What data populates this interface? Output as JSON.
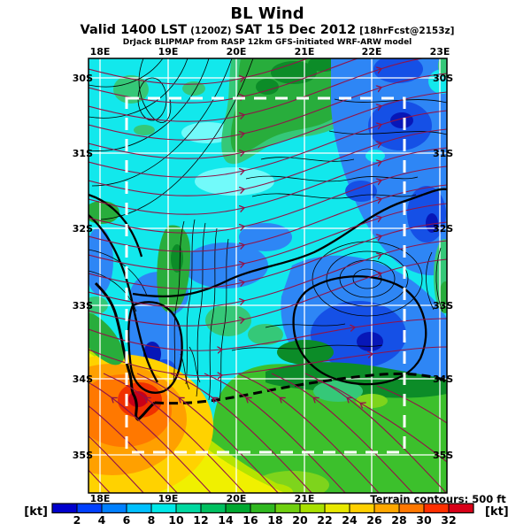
{
  "header": {
    "title": "BL Wind",
    "valid_line": {
      "prefix": "Valid 1400 LST",
      "init_time": "(1200Z)",
      "date": "SAT 15 Dec 2012",
      "fcst_tag": "[18hrFcst@2153z]"
    },
    "attribution": "DrJack BLIPMAP from RASP 12km GFS-initiated WRF-ARW model"
  },
  "map": {
    "top_lon_labels": [
      "18E",
      "19E",
      "20E",
      "21E",
      "22E",
      "23E"
    ],
    "bottom_lon_labels": [
      "18E",
      "19E",
      "20E",
      "21E"
    ],
    "left_lat_labels": [
      "30S",
      "31S",
      "32S",
      "33S",
      "34S",
      "35S"
    ],
    "right_lat_labels": [
      "30S",
      "31S",
      "32S",
      "33S",
      "34S",
      "35S"
    ],
    "terrain_note": "Terrain contours: 500 ft"
  },
  "legend": {
    "unit_left": "[kt]",
    "unit_right": "[kt]",
    "tick_labels": [
      "2",
      "4",
      "6",
      "8",
      "10",
      "12",
      "14",
      "16",
      "18",
      "20",
      "22",
      "24",
      "26",
      "28",
      "30",
      "32"
    ],
    "colors": [
      "#0000CD",
      "#0040FF",
      "#0080FF",
      "#00C0FF",
      "#00E8E8",
      "#00D8A0",
      "#00C060",
      "#00A830",
      "#30B820",
      "#70D010",
      "#A8E000",
      "#E8E800",
      "#FFD000",
      "#FFA800",
      "#FF7800",
      "#FF3000",
      "#D80018"
    ]
  },
  "style_colors": {
    "streamline": "#921348",
    "contour": "#000000",
    "graticule": "#FFFFFF",
    "inner_domain_box": "#FFFFFF"
  }
}
